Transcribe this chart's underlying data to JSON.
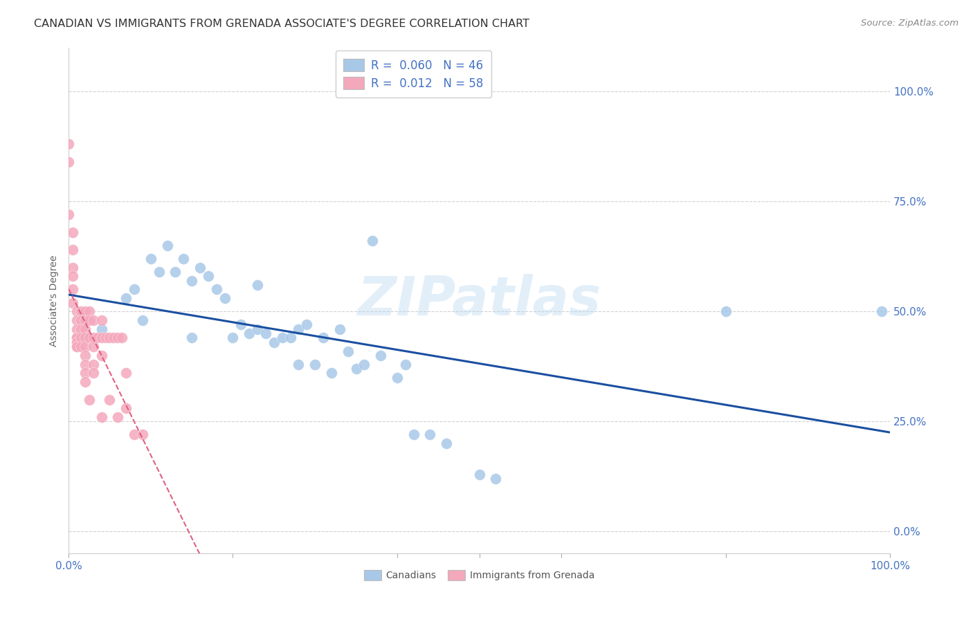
{
  "title": "CANADIAN VS IMMIGRANTS FROM GRENADA ASSOCIATE'S DEGREE CORRELATION CHART",
  "source": "Source: ZipAtlas.com",
  "ylabel": "Associate's Degree",
  "watermark": "ZIPatlas",
  "canadians_R": 0.06,
  "canadians_N": 46,
  "grenada_R": 0.012,
  "grenada_N": 58,
  "canadians_color": "#a8c8e8",
  "grenada_color": "#f4a8bc",
  "canadians_line_color": "#1a4fa0",
  "grenada_line_color": "#e06080",
  "ytick_labels": [
    "0.0%",
    "25.0%",
    "50.0%",
    "75.0%",
    "100.0%"
  ],
  "ytick_values": [
    0.0,
    0.25,
    0.5,
    0.75,
    1.0
  ],
  "canadians_x": [
    0.02,
    0.04,
    0.07,
    0.08,
    0.09,
    0.1,
    0.11,
    0.12,
    0.13,
    0.14,
    0.15,
    0.15,
    0.16,
    0.17,
    0.18,
    0.19,
    0.2,
    0.21,
    0.22,
    0.23,
    0.23,
    0.24,
    0.25,
    0.26,
    0.27,
    0.28,
    0.28,
    0.29,
    0.3,
    0.31,
    0.32,
    0.33,
    0.34,
    0.35,
    0.36,
    0.37,
    0.38,
    0.4,
    0.41,
    0.42,
    0.44,
    0.46,
    0.5,
    0.52,
    0.8,
    0.99
  ],
  "canadians_y": [
    0.44,
    0.46,
    0.53,
    0.55,
    0.48,
    0.62,
    0.59,
    0.65,
    0.59,
    0.62,
    0.57,
    0.44,
    0.6,
    0.58,
    0.55,
    0.53,
    0.44,
    0.47,
    0.45,
    0.46,
    0.56,
    0.45,
    0.43,
    0.44,
    0.44,
    0.46,
    0.38,
    0.47,
    0.38,
    0.44,
    0.36,
    0.46,
    0.41,
    0.37,
    0.38,
    0.66,
    0.4,
    0.35,
    0.38,
    0.22,
    0.22,
    0.2,
    0.13,
    0.12,
    0.5,
    0.5
  ],
  "grenada_x": [
    0.0,
    0.0,
    0.0,
    0.005,
    0.005,
    0.005,
    0.005,
    0.005,
    0.005,
    0.01,
    0.01,
    0.01,
    0.01,
    0.01,
    0.01,
    0.01,
    0.01,
    0.01,
    0.01,
    0.015,
    0.015,
    0.015,
    0.015,
    0.015,
    0.02,
    0.02,
    0.02,
    0.02,
    0.02,
    0.02,
    0.02,
    0.02,
    0.02,
    0.025,
    0.025,
    0.025,
    0.025,
    0.03,
    0.03,
    0.03,
    0.03,
    0.03,
    0.035,
    0.04,
    0.04,
    0.04,
    0.04,
    0.045,
    0.05,
    0.05,
    0.055,
    0.06,
    0.06,
    0.065,
    0.07,
    0.07,
    0.08,
    0.09
  ],
  "grenada_y": [
    0.88,
    0.84,
    0.72,
    0.68,
    0.64,
    0.6,
    0.58,
    0.55,
    0.52,
    0.5,
    0.48,
    0.46,
    0.44,
    0.44,
    0.44,
    0.43,
    0.43,
    0.42,
    0.42,
    0.5,
    0.48,
    0.46,
    0.44,
    0.42,
    0.5,
    0.48,
    0.46,
    0.44,
    0.42,
    0.4,
    0.38,
    0.36,
    0.34,
    0.5,
    0.48,
    0.44,
    0.3,
    0.48,
    0.44,
    0.42,
    0.38,
    0.36,
    0.44,
    0.48,
    0.44,
    0.4,
    0.26,
    0.44,
    0.44,
    0.3,
    0.44,
    0.44,
    0.26,
    0.44,
    0.36,
    0.28,
    0.22,
    0.22
  ],
  "background_color": "#ffffff",
  "grid_color": "#d0d0d0",
  "title_color": "#333333",
  "tick_color": "#4472c4",
  "label_color": "#666666",
  "title_fontsize": 11.5,
  "source_fontsize": 9.5,
  "label_fontsize": 10,
  "tick_fontsize": 11,
  "legend_fontsize": 12
}
